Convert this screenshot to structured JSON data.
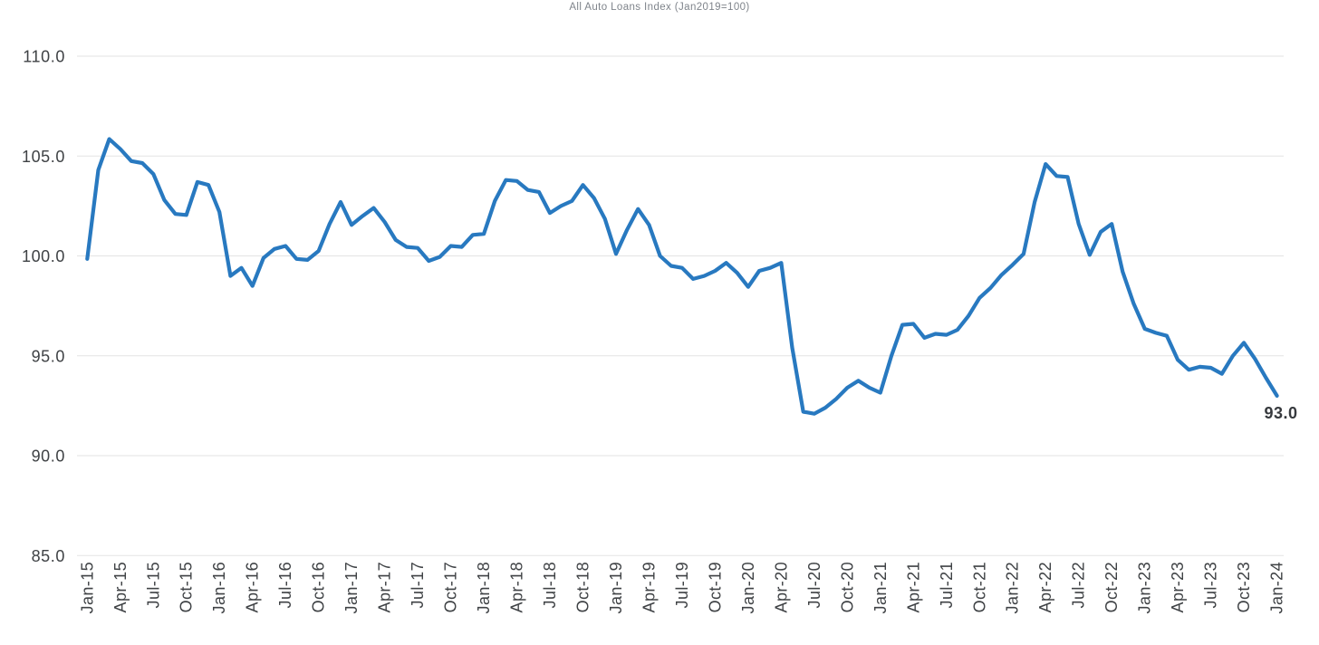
{
  "chart_data": {
    "type": "line",
    "title": "All Auto Loans Index (Jan2019=100)",
    "series_name": "All Auto Loans Index",
    "end_label": "93.0",
    "x_start": "Jan-15",
    "x_end": "Jan-24",
    "tick_every_months": 3,
    "x_tick_labels": [
      "Jan-15",
      "Apr-15",
      "Jul-15",
      "Oct-15",
      "Jan-16",
      "Apr-16",
      "Jul-16",
      "Oct-16",
      "Jan-17",
      "Apr-17",
      "Jul-17",
      "Oct-17",
      "Jan-18",
      "Apr-18",
      "Jul-18",
      "Oct-18",
      "Jan-19",
      "Apr-19",
      "Jul-19",
      "Oct-19",
      "Jan-20",
      "Apr-20",
      "Jul-20",
      "Oct-20",
      "Jan-21",
      "Apr-21",
      "Jul-21",
      "Oct-21",
      "Jan-22",
      "Apr-22",
      "Jul-22",
      "Oct-22",
      "Jan-23",
      "Apr-23",
      "Jul-23",
      "Oct-23",
      "Jan-24"
    ],
    "y_tick_labels": [
      "110.0",
      "105.0",
      "100.0",
      "95.0",
      "90.0",
      "85.0"
    ],
    "y_ticks": [
      110,
      105,
      100,
      95,
      90,
      85
    ],
    "ylim": [
      85,
      110
    ],
    "grid": "horizontal-only",
    "legend": "none",
    "values": [
      99.85,
      104.3,
      105.85,
      105.35,
      104.75,
      104.65,
      104.1,
      102.8,
      102.1,
      102.05,
      103.7,
      103.55,
      102.2,
      99.0,
      99.4,
      98.5,
      99.9,
      100.35,
      100.5,
      99.85,
      99.8,
      100.25,
      101.6,
      102.7,
      101.55,
      102.0,
      102.4,
      101.7,
      100.8,
      100.45,
      100.4,
      99.75,
      99.95,
      100.5,
      100.45,
      101.05,
      101.1,
      102.75,
      103.8,
      103.75,
      103.3,
      103.2,
      102.15,
      102.5,
      102.75,
      103.55,
      102.9,
      101.85,
      100.1,
      101.3,
      102.35,
      101.55,
      100.0,
      99.5,
      99.4,
      98.85,
      99.0,
      99.25,
      99.65,
      99.15,
      98.45,
      99.25,
      99.4,
      99.65,
      95.4,
      92.2,
      92.1,
      92.4,
      92.85,
      93.4,
      93.75,
      93.4,
      93.15,
      95.0,
      96.55,
      96.6,
      95.9,
      96.1,
      96.05,
      96.3,
      97.0,
      97.9,
      98.4,
      99.05,
      99.55,
      100.1,
      102.7,
      104.6,
      104.0,
      103.95,
      101.6,
      100.05,
      101.2,
      101.6,
      99.2,
      97.6,
      96.35,
      96.15,
      96.0,
      94.8,
      94.3,
      94.45,
      94.4,
      94.1,
      95.0,
      95.65,
      94.85,
      93.9,
      93.0
    ]
  },
  "colors": {
    "line": "#2879C0",
    "grid": "#E3E3E3",
    "axis_text": "#3F4245",
    "title_text": "#7F848B",
    "end_label_text": "#36393D",
    "background": "#FFFFFF"
  }
}
